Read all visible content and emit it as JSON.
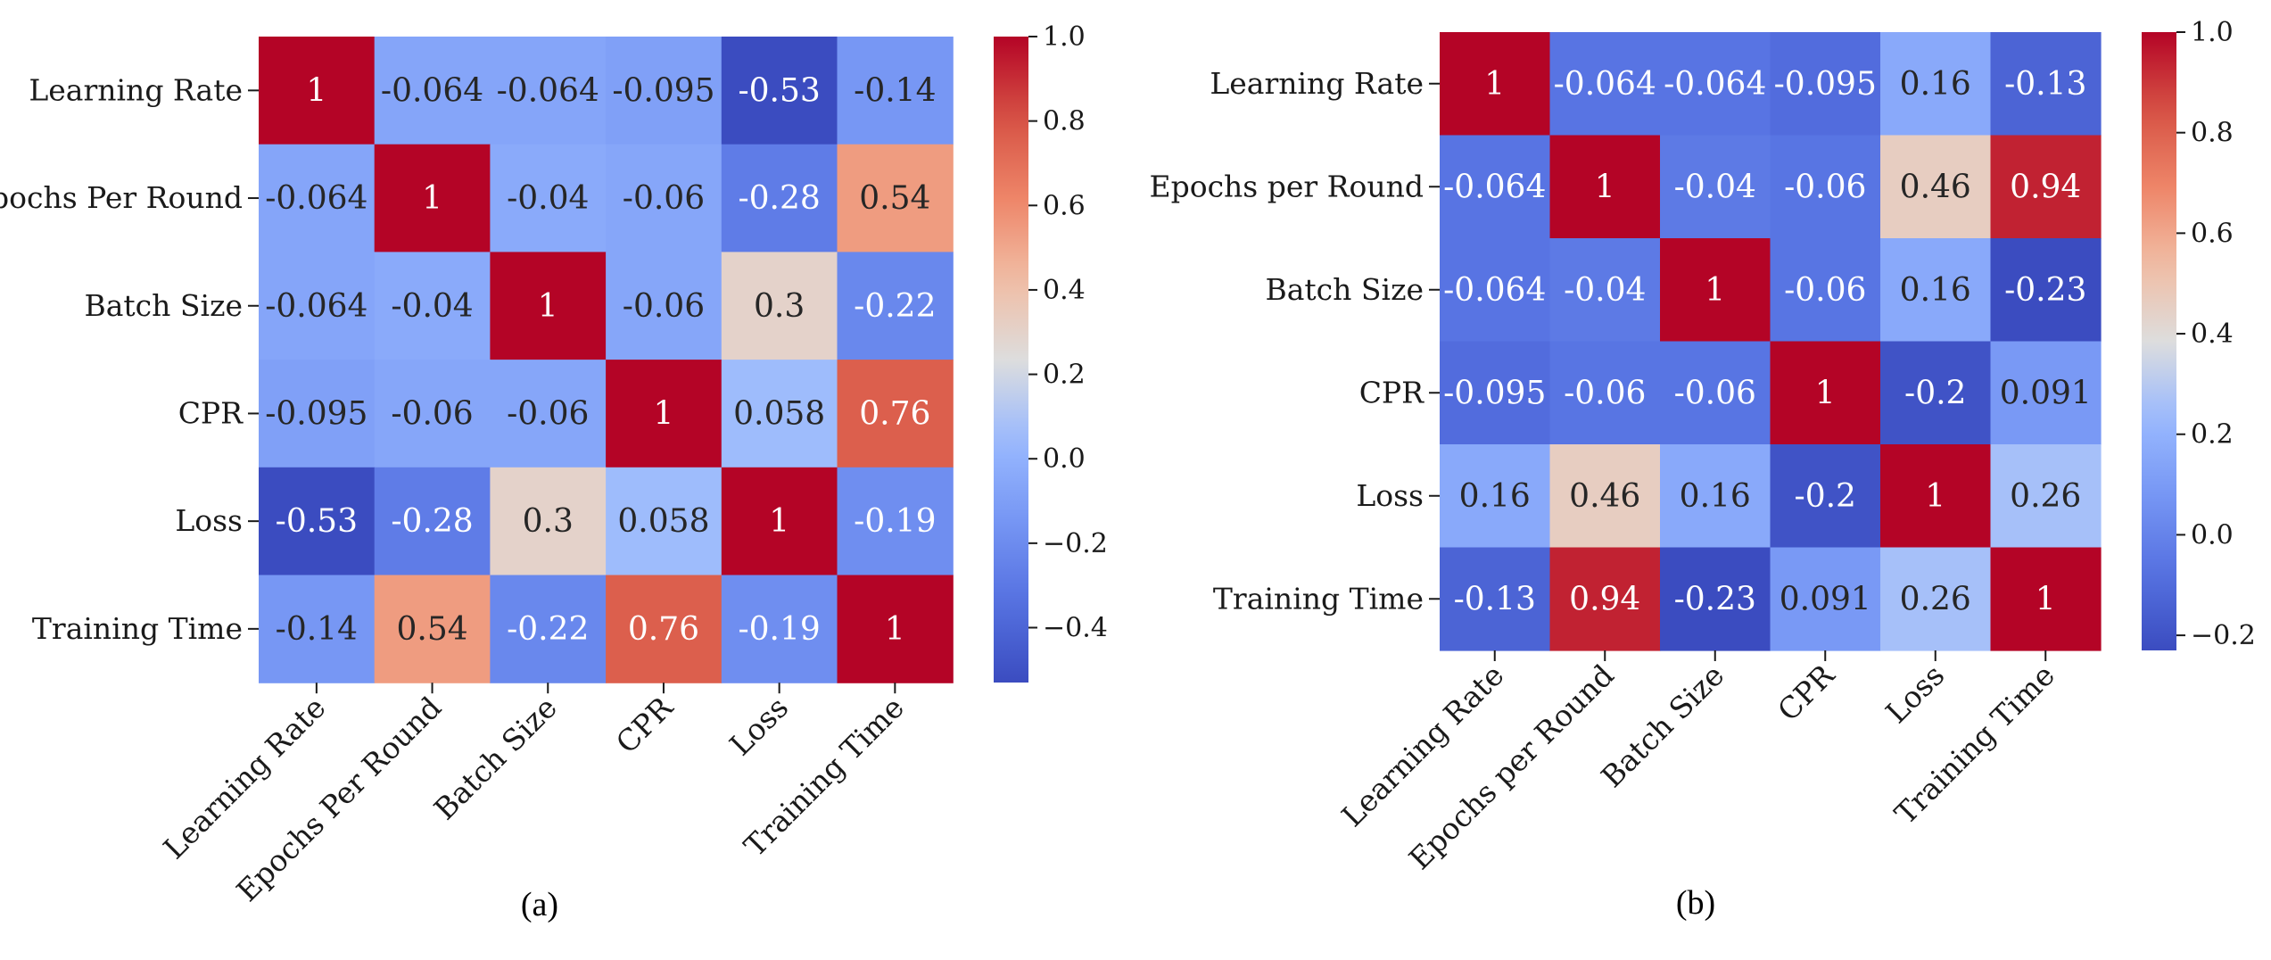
{
  "chart_data": [
    {
      "type": "heatmap",
      "panel_label": "(a)",
      "row_labels": [
        "Learning Rate",
        "Epochs Per Round",
        "Batch Size",
        "CPR",
        "Loss",
        "Training Time"
      ],
      "col_labels": [
        "Learning Rate",
        "Epochs Per Round",
        "Batch Size",
        "CPR",
        "Loss",
        "Training Time"
      ],
      "cell_labels": [
        [
          "1",
          "-0.064",
          "-0.064",
          "-0.095",
          "-0.53",
          "-0.14"
        ],
        [
          "-0.064",
          "1",
          "-0.04",
          "-0.06",
          "-0.28",
          "0.54"
        ],
        [
          "-0.064",
          "-0.04",
          "1",
          "-0.06",
          "0.3",
          "-0.22"
        ],
        [
          "-0.095",
          "-0.06",
          "-0.06",
          "1",
          "0.058",
          "0.76"
        ],
        [
          "-0.53",
          "-0.28",
          "0.3",
          "0.058",
          "1",
          "-0.19"
        ],
        [
          "-0.14",
          "0.54",
          "-0.22",
          "0.76",
          "-0.19",
          "1"
        ]
      ],
      "values": [
        [
          1,
          -0.064,
          -0.064,
          -0.095,
          -0.53,
          -0.14
        ],
        [
          -0.064,
          1,
          -0.04,
          -0.06,
          -0.28,
          0.54
        ],
        [
          -0.064,
          -0.04,
          1,
          -0.06,
          0.3,
          -0.22
        ],
        [
          -0.095,
          -0.06,
          -0.06,
          1,
          0.058,
          0.76
        ],
        [
          -0.53,
          -0.28,
          0.3,
          0.058,
          1,
          -0.19
        ],
        [
          -0.14,
          0.54,
          -0.22,
          0.76,
          -0.19,
          1
        ]
      ],
      "colormap": "coolwarm",
      "colorbar_range": [
        -0.53,
        1.0
      ],
      "colorbar_ticks": [
        1.0,
        0.8,
        0.6,
        0.4,
        0.2,
        0.0,
        -0.2,
        -0.4
      ],
      "colorbar_tick_labels": [
        "1.0",
        "0.8",
        "0.6",
        "0.4",
        "0.2",
        "0.0",
        "−0.2",
        "−0.4"
      ]
    },
    {
      "type": "heatmap",
      "panel_label": "(b)",
      "row_labels": [
        "Learning Rate",
        "Epochs per Round",
        "Batch Size",
        "CPR",
        "Loss",
        "Training Time"
      ],
      "col_labels": [
        "Learning Rate",
        "Epochs per Round",
        "Batch Size",
        "CPR",
        "Loss",
        "Training Time"
      ],
      "cell_labels": [
        [
          "1",
          "-0.064",
          "-0.064",
          "-0.095",
          "0.16",
          "-0.13"
        ],
        [
          "-0.064",
          "1",
          "-0.04",
          "-0.06",
          "0.46",
          "0.94"
        ],
        [
          "-0.064",
          "-0.04",
          "1",
          "-0.06",
          "0.16",
          "-0.23"
        ],
        [
          "-0.095",
          "-0.06",
          "-0.06",
          "1",
          "-0.2",
          "0.091"
        ],
        [
          "0.16",
          "0.46",
          "0.16",
          "-0.2",
          "1",
          "0.26"
        ],
        [
          "-0.13",
          "0.94",
          "-0.23",
          "0.091",
          "0.26",
          "1"
        ]
      ],
      "values": [
        [
          1,
          -0.064,
          -0.064,
          -0.095,
          0.16,
          -0.13
        ],
        [
          -0.064,
          1,
          -0.04,
          -0.06,
          0.46,
          0.94
        ],
        [
          -0.064,
          -0.04,
          1,
          -0.06,
          0.16,
          -0.23
        ],
        [
          -0.095,
          -0.06,
          -0.06,
          1,
          -0.2,
          0.091
        ],
        [
          0.16,
          0.46,
          0.16,
          -0.2,
          1,
          0.26
        ],
        [
          -0.13,
          0.94,
          -0.23,
          0.091,
          0.26,
          1
        ]
      ],
      "colormap": "coolwarm",
      "colorbar_range": [
        -0.23,
        1.0
      ],
      "colorbar_ticks": [
        1.0,
        0.8,
        0.6,
        0.4,
        0.2,
        0.0,
        -0.2
      ],
      "colorbar_tick_labels": [
        "1.0",
        "0.8",
        "0.6",
        "0.4",
        "0.2",
        "0.0",
        "−0.2"
      ]
    }
  ]
}
